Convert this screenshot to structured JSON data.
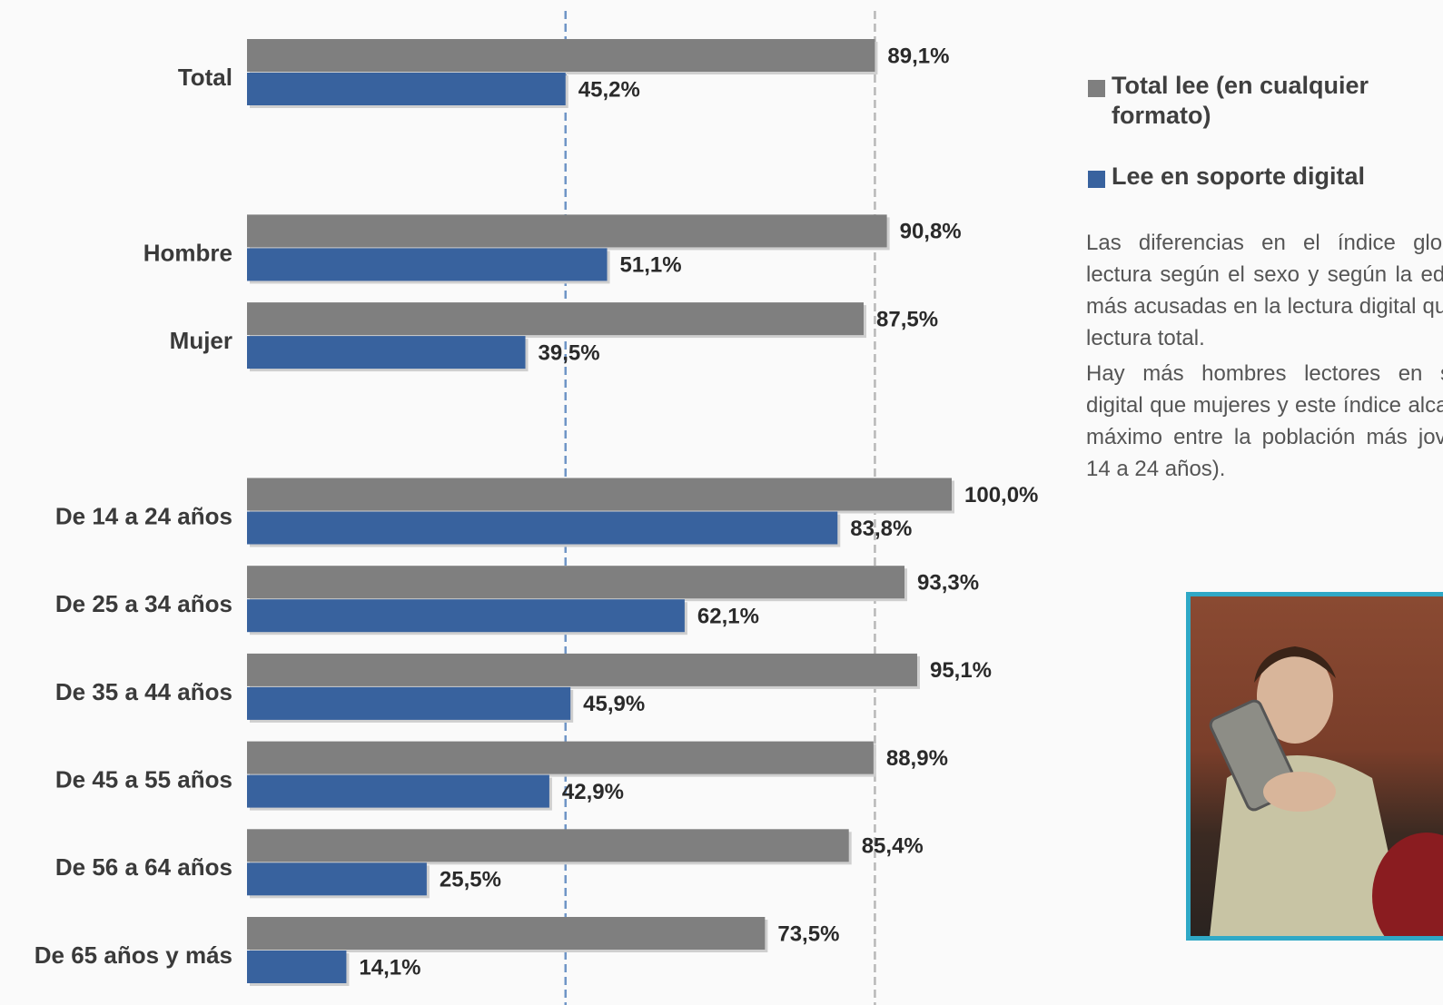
{
  "chart_data": {
    "type": "bar",
    "orientation": "horizontal",
    "categories": [
      "Total",
      null,
      "Hombre",
      "Mujer",
      null,
      "De 14 a 24 años",
      "De 25 a 34 años",
      "De 35 a 44 años",
      "De 45 a 55 años",
      "De 56 a 64 años",
      "De 65 años y más"
    ],
    "series": [
      {
        "name": "Total lee (en cualquier formato)",
        "color": "#7f7f7f",
        "values": [
          89.1,
          null,
          90.8,
          87.5,
          null,
          100.0,
          93.3,
          95.1,
          88.9,
          85.4,
          73.5
        ],
        "value_labels": [
          "89,1%",
          null,
          "90,8%",
          "87,5%",
          null,
          "100,0%",
          "93,3%",
          "95,1%",
          "88,9%",
          "85,4%",
          "73,5%"
        ]
      },
      {
        "name": "Lee en soporte digital",
        "color": "#38629e",
        "values": [
          45.2,
          null,
          51.1,
          39.5,
          null,
          83.8,
          62.1,
          45.9,
          42.9,
          25.5,
          14.1
        ],
        "value_labels": [
          "45,2%",
          null,
          "51,1%",
          "39,5%",
          null,
          "83,8%",
          "62,1%",
          "45,9%",
          "42,9%",
          "25,5%",
          "14,1%"
        ]
      }
    ],
    "xlim": [
      0,
      100
    ],
    "note": [
      "Las diferencias en el índice global de lectura según el sexo y según la edad son más acusadas en la lectura digital que en la lectura total.",
      "Hay más hombres lectores en soporte digital que mujeres y este índice alcanza su máximo entre la población más joven (de 14 a 24 años)."
    ]
  }
}
